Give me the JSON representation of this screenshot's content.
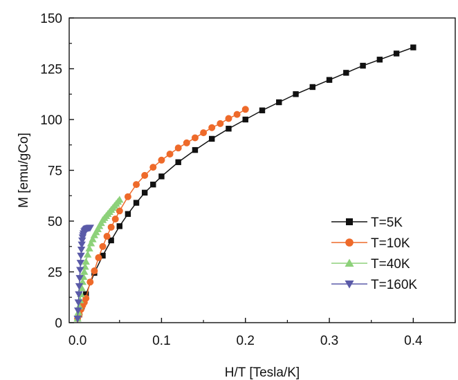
{
  "chart_data": {
    "type": "line",
    "xlabel": "H/T [Tesla/K]",
    "ylabel": "M [emu/gCo]",
    "xlim": [
      -0.01,
      0.45
    ],
    "ylim": [
      0,
      150
    ],
    "x_ticks": [
      "0.0",
      "0.1",
      "0.2",
      "0.3",
      "0.4"
    ],
    "x_tick_values": [
      0,
      0.1,
      0.2,
      0.3,
      0.4
    ],
    "y_ticks": [
      "0",
      "25",
      "50",
      "75",
      "100",
      "125",
      "150"
    ],
    "y_tick_values": [
      0,
      25,
      50,
      75,
      100,
      125,
      150
    ],
    "grid": false,
    "legend_position": "lower-right",
    "series": [
      {
        "name": "T=5K",
        "color": "#111111",
        "marker": "square",
        "x": [
          0,
          0.002,
          0.005,
          0.01,
          0.02,
          0.03,
          0.04,
          0.05,
          0.06,
          0.07,
          0.08,
          0.09,
          0.1,
          0.12,
          0.14,
          0.16,
          0.18,
          0.2,
          0.22,
          0.24,
          0.26,
          0.28,
          0.3,
          0.32,
          0.34,
          0.36,
          0.38,
          0.4
        ],
        "y": [
          2,
          4,
          8,
          14,
          24.5,
          33,
          40.5,
          47.5,
          53.5,
          59,
          64,
          68,
          72,
          79,
          85,
          90.5,
          95.5,
          100,
          104.5,
          108.5,
          112.5,
          116,
          119.5,
          123,
          126.5,
          129.5,
          132.5,
          135.5
        ]
      },
      {
        "name": "T=10K",
        "color": "#ee6a2a",
        "marker": "circle",
        "x": [
          0,
          0.002,
          0.004,
          0.006,
          0.008,
          0.01,
          0.015,
          0.02,
          0.025,
          0.03,
          0.035,
          0.04,
          0.045,
          0.05,
          0.06,
          0.07,
          0.08,
          0.09,
          0.1,
          0.11,
          0.12,
          0.13,
          0.14,
          0.15,
          0.16,
          0.17,
          0.18,
          0.19,
          0.2
        ],
        "y": [
          2,
          4,
          6.5,
          8.5,
          10,
          12,
          20,
          25.5,
          32,
          37.5,
          42.5,
          47,
          51,
          55,
          62,
          68,
          72.5,
          76.5,
          80,
          83,
          86,
          88.5,
          91,
          93.5,
          96,
          98,
          100.5,
          102.5,
          105
        ]
      },
      {
        "name": "T=40K",
        "color": "#8dd17a",
        "marker": "triangle-up",
        "x": [
          0,
          0.001,
          0.002,
          0.003,
          0.004,
          0.005,
          0.006,
          0.007,
          0.008,
          0.009,
          0.01,
          0.012,
          0.014,
          0.016,
          0.018,
          0.02,
          0.022,
          0.024,
          0.026,
          0.028,
          0.03,
          0.032,
          0.034,
          0.036,
          0.038,
          0.04,
          0.042,
          0.044,
          0.046,
          0.048,
          0.05
        ],
        "y": [
          2,
          5,
          8,
          11,
          14,
          17,
          20,
          22.5,
          25,
          27.5,
          30,
          33.5,
          36.5,
          39,
          41,
          43,
          44.5,
          46,
          47.5,
          49,
          50.5,
          51.5,
          52.5,
          53.5,
          54.5,
          55.5,
          56.5,
          57.5,
          58.5,
          59.5,
          60.5
        ]
      },
      {
        "name": "T=160K",
        "color": "#5a5aa8",
        "marker": "triangle-down",
        "x": [
          0,
          0.0005,
          0.001,
          0.0015,
          0.002,
          0.0025,
          0.003,
          0.0035,
          0.004,
          0.0045,
          0.005,
          0.0055,
          0.006,
          0.0065,
          0.007,
          0.008,
          0.009,
          0.01,
          0.011,
          0.012,
          0.013,
          0.014,
          0.015
        ],
        "y": [
          2,
          6,
          10,
          14,
          18,
          22,
          26,
          29.5,
          33,
          36,
          38.5,
          40.5,
          42,
          43,
          44,
          45,
          45.5,
          46,
          46.3,
          46.5,
          46.6,
          46.7,
          46.8
        ]
      }
    ]
  }
}
